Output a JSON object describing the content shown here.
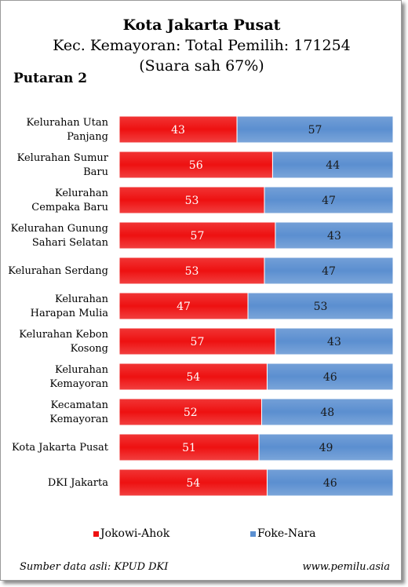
{
  "header": {
    "title": "Kota Jakarta Pusat",
    "subtitle": "Kec. Kemayoran: Total Pemilih: 171254",
    "subtitle2": "(Suara sah 67%)",
    "round": "Putaran 2"
  },
  "footer": {
    "source": "Sumber data asli: KPUD DKI",
    "site": "www.pemilu.asia"
  },
  "colors": {
    "jokowi": "#ee1111",
    "foke": "#5b8fd0"
  },
  "chart_data": {
    "type": "bar",
    "stacked": true,
    "orientation": "horizontal",
    "categories": [
      [
        "Kelurahan Utan",
        "Panjang"
      ],
      [
        "Kelurahan Sumur",
        "Baru"
      ],
      [
        "Kelurahan",
        "Cempaka Baru"
      ],
      [
        "Kelurahan Gunung",
        "Sahari Selatan"
      ],
      [
        "Kelurahan Serdang"
      ],
      [
        "Kelurahan",
        "Harapan Mulia"
      ],
      [
        "Kelurahan Kebon",
        "Kosong"
      ],
      [
        "Kelurahan",
        "Kemayoran"
      ],
      [
        "Kecamatan",
        "Kemayoran"
      ],
      [
        "Kota Jakarta Pusat"
      ],
      [
        "DKI Jakarta"
      ]
    ],
    "series": [
      {
        "name": "Jokowi-Ahok",
        "values": [
          43,
          56,
          53,
          57,
          53,
          47,
          57,
          54,
          52,
          51,
          54
        ]
      },
      {
        "name": "Foke-Nara",
        "values": [
          57,
          44,
          47,
          43,
          47,
          53,
          43,
          46,
          48,
          49,
          46
        ]
      }
    ],
    "xlim": [
      0,
      100
    ],
    "legend_position": "bottom"
  }
}
